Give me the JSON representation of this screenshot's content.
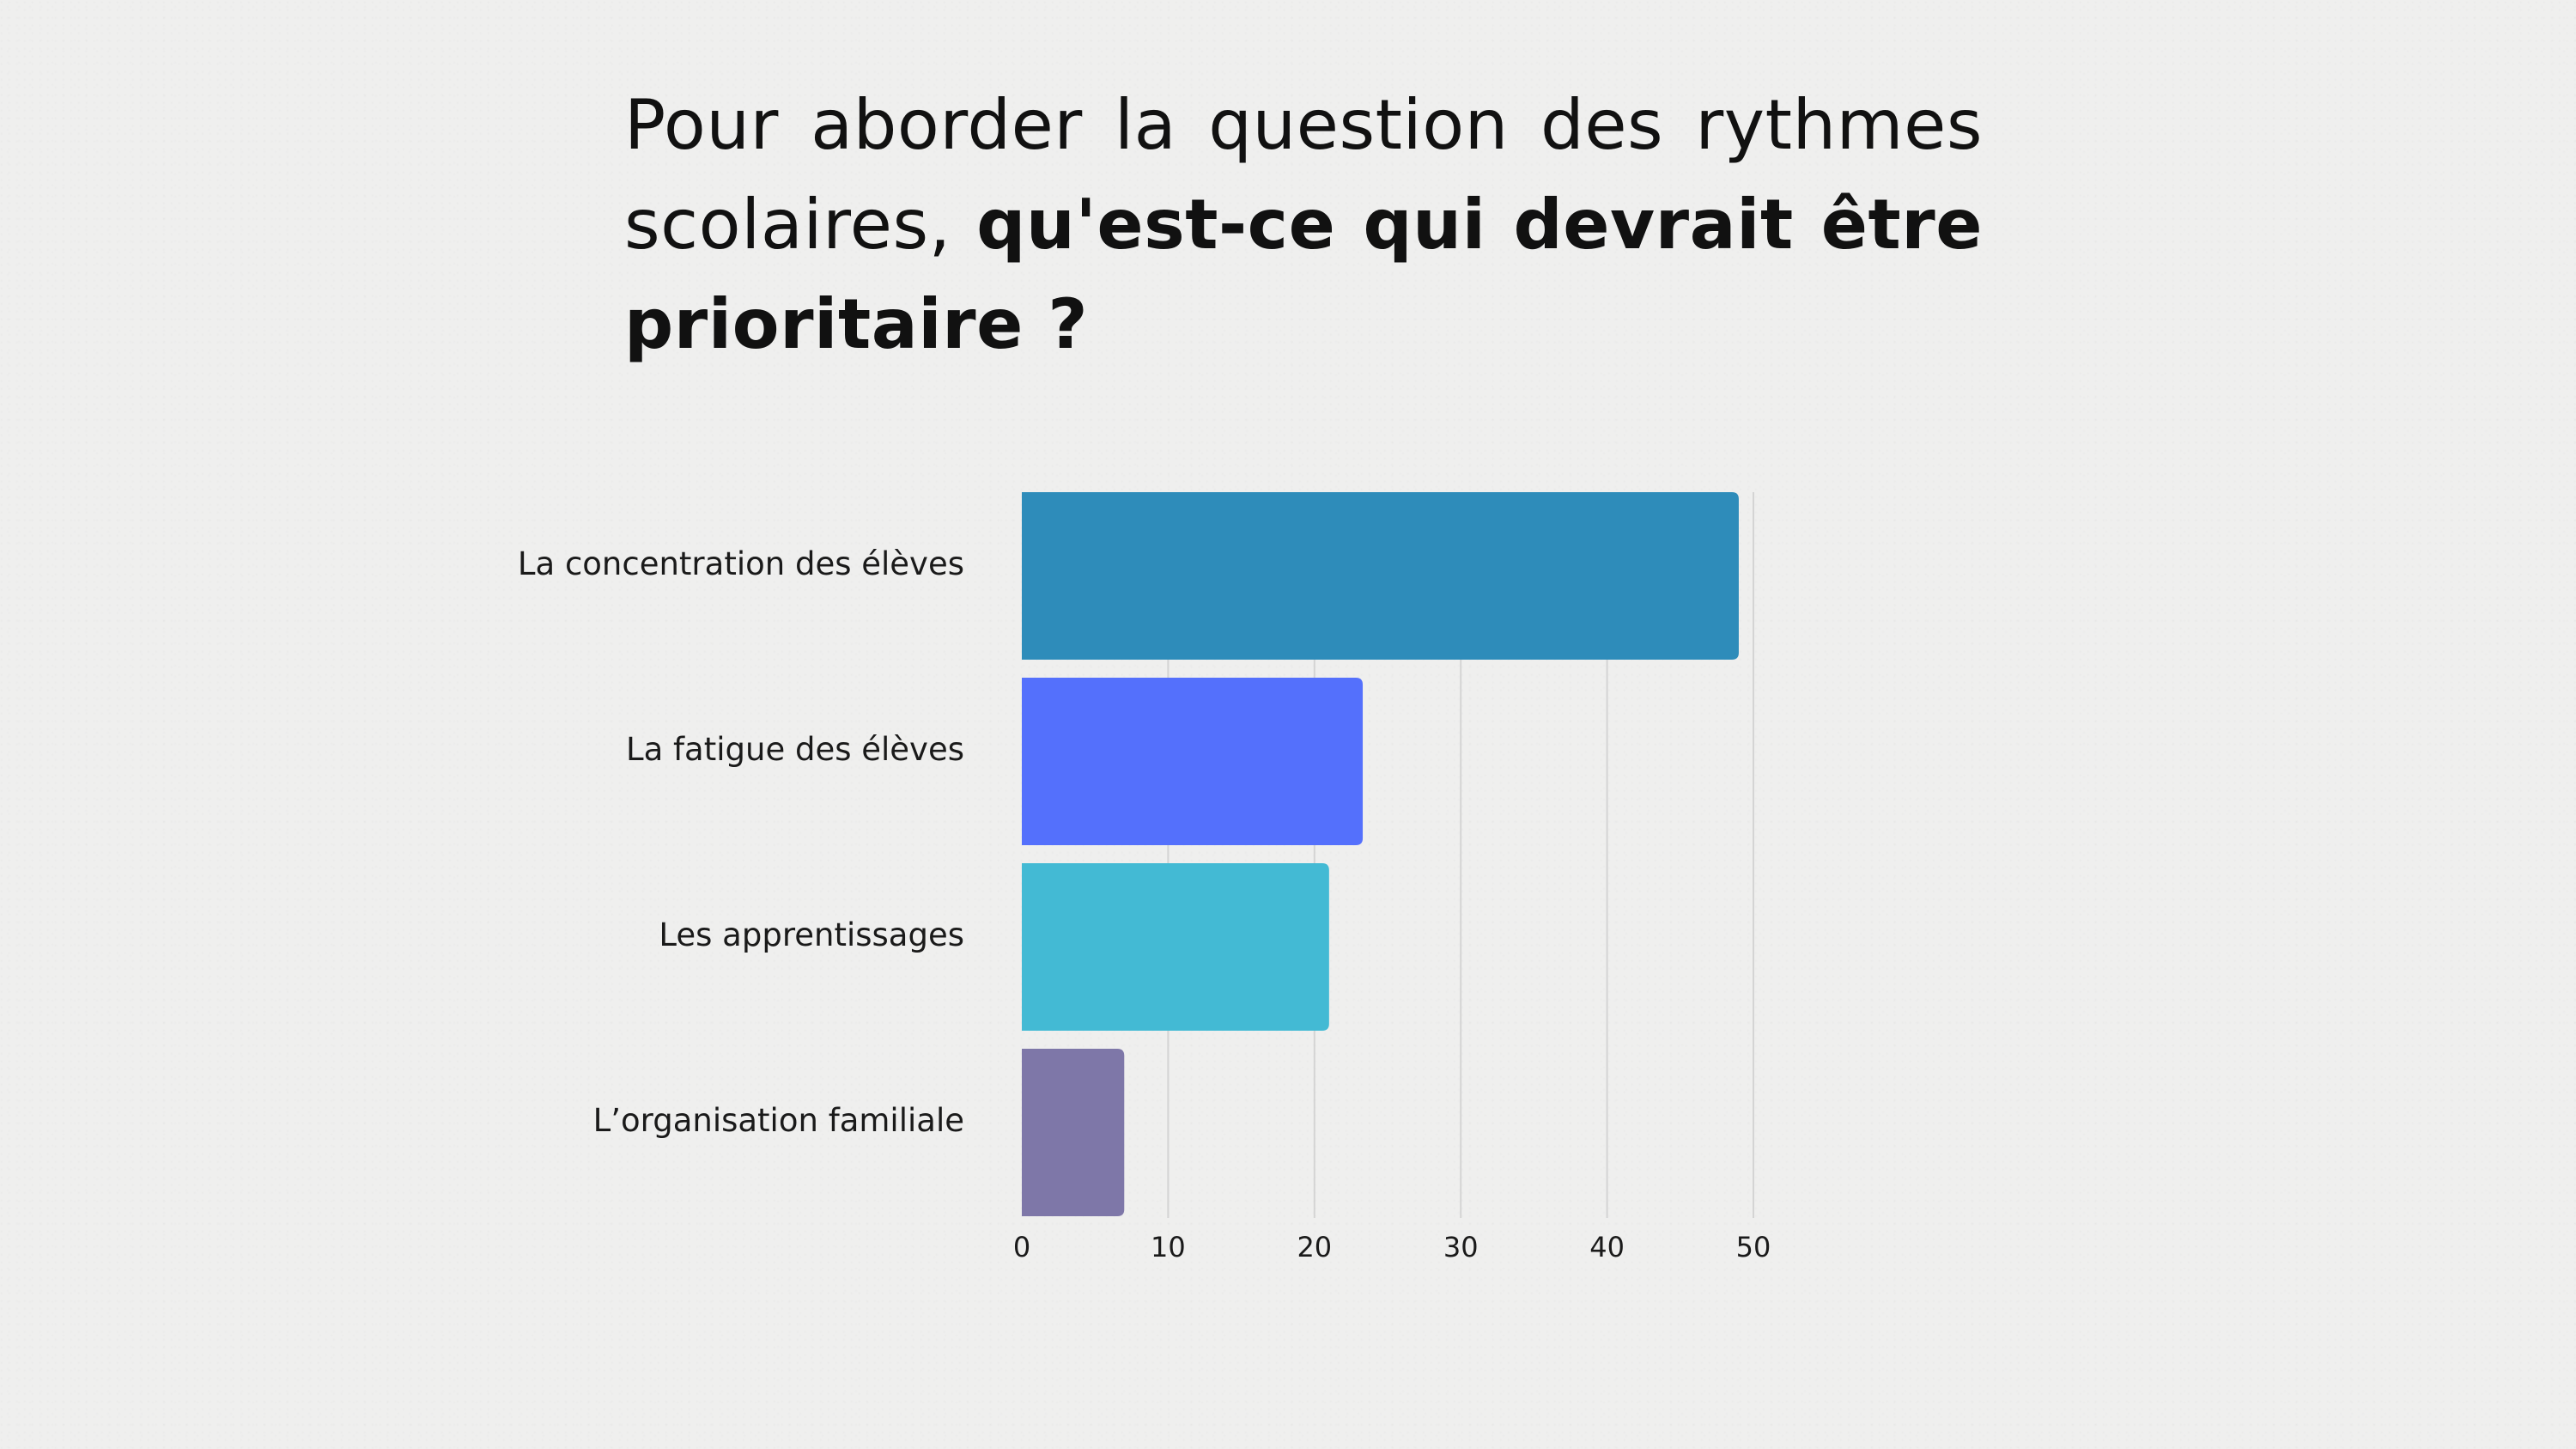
{
  "title": {
    "normal": "Pour aborder la question des rythmes scolaires, ",
    "bold": "qu'est-ce qui devrait être prioritaire ?"
  },
  "chart_data": {
    "type": "bar",
    "orientation": "horizontal",
    "categories": [
      "La concentration des élèves",
      "La fatigue des élèves",
      "Les apprentissages",
      "L’organisation familiale"
    ],
    "values": [
      49,
      23.3,
      21,
      7
    ],
    "colors": [
      "#2e8cba",
      "#5470fc",
      "#43bad4",
      "#7e77a8"
    ],
    "xlim": [
      0,
      50
    ],
    "xticks": [
      0,
      10,
      20,
      30,
      40,
      50
    ],
    "grid": true,
    "legend": "none"
  }
}
